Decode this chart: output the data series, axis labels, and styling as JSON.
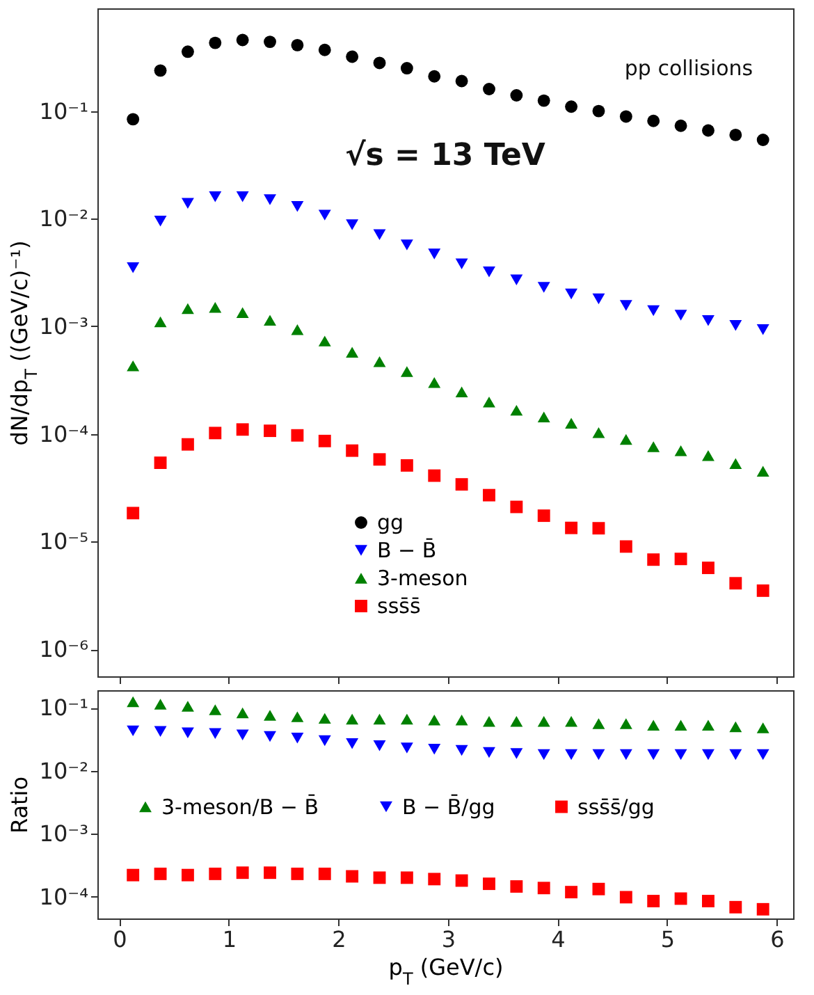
{
  "chart_data": [
    {
      "type": "scatter",
      "ylabel": "dN/dp$_{T}$ ((GeV/c)⁻¹)",
      "annotations": [
        "pp collisions",
        "√s = 13 TeV"
      ],
      "x": [
        0.125,
        0.375,
        0.625,
        0.875,
        1.125,
        1.375,
        1.625,
        1.875,
        2.125,
        2.375,
        2.625,
        2.875,
        3.125,
        3.375,
        3.625,
        3.875,
        4.125,
        4.375,
        4.625,
        4.875,
        5.125,
        5.375,
        5.625,
        5.875
      ],
      "xlim": [
        -0.2,
        6.15
      ],
      "xticks": [
        0,
        1,
        2,
        3,
        4,
        5,
        6
      ],
      "ylim": [
        5.6e-07,
        0.9
      ],
      "yticks": [
        {
          "value": 1e-06,
          "label": "10⁻⁶"
        },
        {
          "value": 1e-05,
          "label": "10⁻⁵"
        },
        {
          "value": 0.0001,
          "label": "10⁻⁴"
        },
        {
          "value": 0.001,
          "label": "10⁻³"
        },
        {
          "value": 0.01,
          "label": "10⁻²"
        },
        {
          "value": 0.1,
          "label": "10⁻¹"
        }
      ],
      "log": "y",
      "grid": false,
      "legend": "bottom",
      "tick_labels": "y",
      "series": [
        {
          "name": "gg",
          "color": "#000000",
          "marker": "circle",
          "values": [
            0.084,
            0.238,
            0.356,
            0.43,
            0.457,
            0.44,
            0.41,
            0.37,
            0.32,
            0.28,
            0.25,
            0.21,
            0.19,
            0.16,
            0.14,
            0.125,
            0.11,
            0.1,
            0.089,
            0.081,
            0.073,
            0.066,
            0.06,
            0.054
          ]
        },
        {
          "name": "B − B̄",
          "color": "#0000ff",
          "marker": "triangle-down",
          "values": [
            0.0035,
            0.0095,
            0.0139,
            0.016,
            0.016,
            0.015,
            0.013,
            0.0108,
            0.0088,
            0.0071,
            0.0057,
            0.0047,
            0.0038,
            0.0032,
            0.0027,
            0.0023,
            0.002,
            0.0018,
            0.00156,
            0.0014,
            0.00127,
            0.00113,
            0.00102,
            0.00093
          ]
        },
        {
          "name": "3-meson",
          "color": "#008000",
          "marker": "triangle",
          "values": [
            0.00043,
            0.0011,
            0.00146,
            0.0015,
            0.00134,
            0.00114,
            0.00093,
            0.00073,
            0.000575,
            0.00047,
            0.00038,
            0.0003,
            0.000246,
            0.000198,
            0.000166,
            0.000144,
            0.000126,
            0.000103,
            8.9e-05,
            7.6e-05,
            7e-05,
            6.3e-05,
            5.3e-05,
            4.5e-05
          ]
        },
        {
          "name": "sss̄s̄",
          "color": "#ff0000",
          "marker": "square",
          "values": [
            1.84e-05,
            5.4e-05,
            8e-05,
            0.000102,
            0.00011,
            0.000107,
            9.7e-05,
            8.6e-05,
            7e-05,
            5.8e-05,
            5.1e-05,
            4.1e-05,
            3.4e-05,
            2.7e-05,
            2.1e-05,
            1.74e-05,
            1.34e-05,
            1.33e-05,
            9e-06,
            6.8e-06,
            6.9e-06,
            5.7e-06,
            4.1e-06,
            3.5e-06
          ]
        }
      ]
    },
    {
      "type": "scatter",
      "xlabel": "p$_{T}$ (GeV/c)",
      "ylabel": "Ratio",
      "x": [
        0.125,
        0.375,
        0.625,
        0.875,
        1.125,
        1.375,
        1.625,
        1.875,
        2.125,
        2.375,
        2.625,
        2.875,
        3.125,
        3.375,
        3.625,
        3.875,
        4.125,
        4.375,
        4.625,
        4.875,
        5.125,
        5.375,
        5.625,
        5.875
      ],
      "xlim": [
        -0.2,
        6.15
      ],
      "xticks": [
        0,
        1,
        2,
        3,
        4,
        5,
        6
      ],
      "ylim": [
        4.5e-05,
        0.19
      ],
      "yticks": [
        {
          "value": 0.0001,
          "label": "10⁻⁴"
        },
        {
          "value": 0.001,
          "label": "10⁻³"
        },
        {
          "value": 0.01,
          "label": "10⁻²"
        },
        {
          "value": 0.1,
          "label": "10⁻¹"
        }
      ],
      "log": "y",
      "grid": false,
      "legend": "center",
      "series": [
        {
          "name": "3-meson/B − B̄",
          "color": "#008000",
          "marker": "triangle",
          "values": [
            0.125,
            0.114,
            0.106,
            0.093,
            0.083,
            0.076,
            0.072,
            0.068,
            0.066,
            0.066,
            0.066,
            0.064,
            0.064,
            0.061,
            0.061,
            0.061,
            0.061,
            0.056,
            0.056,
            0.053,
            0.053,
            0.053,
            0.05,
            0.048
          ]
        },
        {
          "name": "B − B̄/gg",
          "color": "#0000ff",
          "marker": "triangle-down",
          "values": [
            0.043,
            0.042,
            0.04,
            0.039,
            0.037,
            0.035,
            0.033,
            0.03,
            0.027,
            0.025,
            0.023,
            0.022,
            0.021,
            0.0195,
            0.0188,
            0.018,
            0.018,
            0.018,
            0.018,
            0.018,
            0.018,
            0.018,
            0.018,
            0.018
          ]
        },
        {
          "name": "sss̄s̄/gg",
          "color": "#ff0000",
          "marker": "square",
          "values": [
            0.00022,
            0.00023,
            0.00022,
            0.00023,
            0.00024,
            0.00024,
            0.00023,
            0.00023,
            0.00021,
            0.0002,
            0.0002,
            0.00019,
            0.00018,
            0.00016,
            0.000145,
            0.000137,
            0.000118,
            0.000132,
            9.8e-05,
            8.5e-05,
            9.3e-05,
            8.5e-05,
            6.8e-05,
            6.3e-05
          ]
        }
      ]
    }
  ]
}
